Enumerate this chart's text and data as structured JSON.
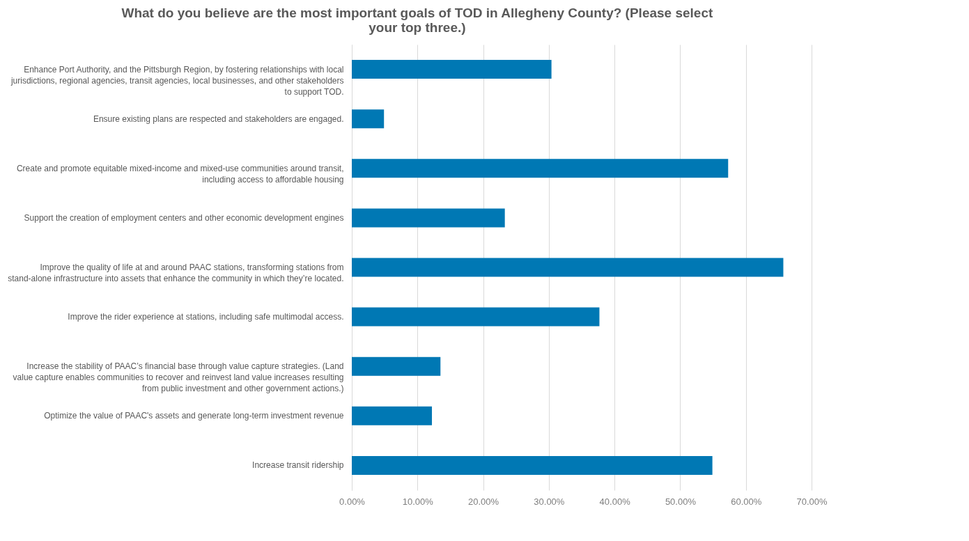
{
  "chart_data": {
    "type": "bar",
    "orientation": "horizontal",
    "title": "What do you believe are the most important goals of TOD in Allegheny County? (Please select your top three.)",
    "categories": [
      "Enhance Port Authority, and the Pittsburgh Region, by fostering relationships with local jurisdictions, regional agencies, transit agencies, local businesses, and other stakeholders to support TOD.",
      "Ensure existing plans are respected and stakeholders are engaged.",
      "Create and promote equitable mixed-income and mixed-use communities around transit, including access to affordable housing",
      "Support the creation of employment centers and other economic development engines",
      "Improve the quality of life at and around PAAC stations, transforming stations from stand-alone infrastructure into assets that enhance the community in which they’re located.",
      "Improve the rider experience at stations, including safe multimodal access.",
      "Increase the stability of PAAC’s financial base through value capture strategies. (Land value capture enables communities to recover and reinvest land value increases resulting from public investment and other government actions.)",
      "Optimize the value of PAAC's assets and generate long-term investment revenue",
      "Increase transit ridership"
    ],
    "values": [
      30.4,
      4.9,
      57.3,
      23.3,
      65.7,
      37.7,
      13.5,
      12.2,
      54.9
    ],
    "color": "#0078b4",
    "xlim": [
      0,
      70
    ],
    "xticks": [
      {
        "value": 0,
        "label": "0.00%"
      },
      {
        "value": 10,
        "label": "10.00%"
      },
      {
        "value": 20,
        "label": "20.00%"
      },
      {
        "value": 30,
        "label": "30.00%"
      },
      {
        "value": 40,
        "label": "40.00%"
      },
      {
        "value": 50,
        "label": "50.00%"
      },
      {
        "value": 60,
        "label": "60.00%"
      },
      {
        "value": 70,
        "label": "70.00%"
      }
    ],
    "grid": "x"
  }
}
